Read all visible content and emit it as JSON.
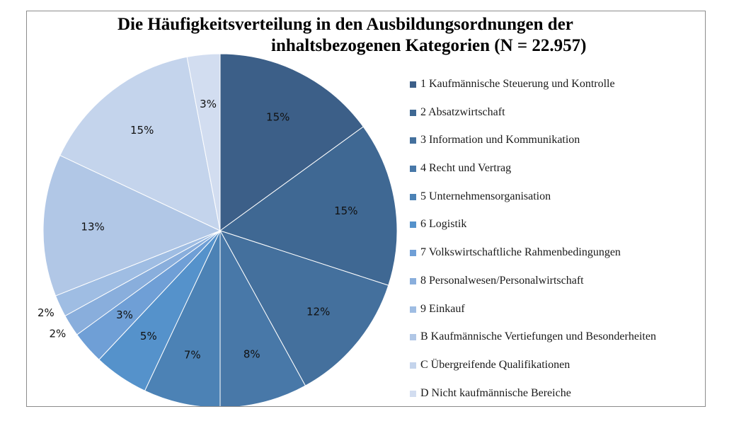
{
  "chart_data": {
    "type": "pie",
    "title_line1": "Die Häufigkeitsverteilung in den Ausbildungsordnungen der",
    "title_line2": "inhaltsbezogenen Kategorien (N = 22.957)",
    "categories": [
      "1 Kaufmännische Steuerung und Kontrolle",
      "2 Absatzwirtschaft",
      "3 Information und Kommunikation",
      "4 Recht und Vertrag",
      "5 Unternehmensorganisation",
      "6 Logistik",
      "7 Volkswirtschaftliche Rahmenbedingungen",
      "8 Personalwesen/Personalwirtschaft",
      "9 Einkauf",
      "B Kaufmännische Vertiefungen und Besonderheiten",
      "C Übergreifende Qualifikationen",
      "D Nicht kaufmännische Bereiche"
    ],
    "values": [
      15,
      15,
      12,
      8,
      7,
      5,
      3,
      2,
      2,
      13,
      15,
      3
    ],
    "data_labels": [
      "15%",
      "15%",
      "12%",
      "8%",
      "7%",
      "5%",
      "3%",
      "2%",
      "2%",
      "13%",
      "15%",
      "3%"
    ],
    "colors": [
      "#3c5f88",
      "#3f6893",
      "#44709d",
      "#4878a8",
      "#4c82b5",
      "#5592cb",
      "#6f9fd6",
      "#89aedc",
      "#9fbde3",
      "#b1c7e6",
      "#c4d4ec",
      "#d2ddf0"
    ],
    "legend_position": "right"
  }
}
